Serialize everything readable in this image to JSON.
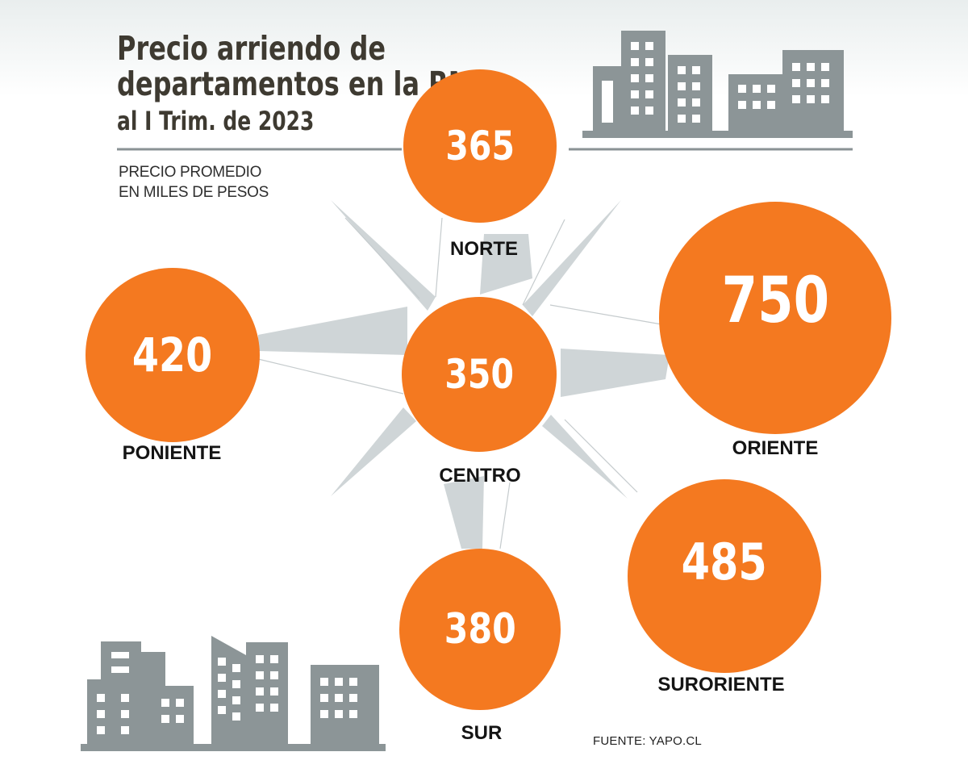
{
  "title": {
    "line1": "Precio arriendo de",
    "line2": "departamentos en la RM",
    "line3": "al I Trim. de 2023"
  },
  "subtitle": {
    "line1": "PRECIO PROMEDIO",
    "line2": "EN MILES DE PESOS"
  },
  "source": "FUENTE: YAPO.CL",
  "colors": {
    "bubble": "#f47920",
    "compass": "#cfd5d7",
    "building": "#8c9597",
    "rule": "#8a9294",
    "title": "#3e3a31"
  },
  "icons": [
    "compass-rose-icon",
    "city-buildings-icon"
  ],
  "chart_data": {
    "type": "bubble",
    "unit": "miles de pesos",
    "regions": [
      {
        "name": "NORTE",
        "value": 365
      },
      {
        "name": "PONIENTE",
        "value": 420
      },
      {
        "name": "CENTRO",
        "value": 350
      },
      {
        "name": "ORIENTE",
        "value": 750
      },
      {
        "name": "SUR",
        "value": 380
      },
      {
        "name": "SURORIENTE",
        "value": 485
      }
    ]
  }
}
